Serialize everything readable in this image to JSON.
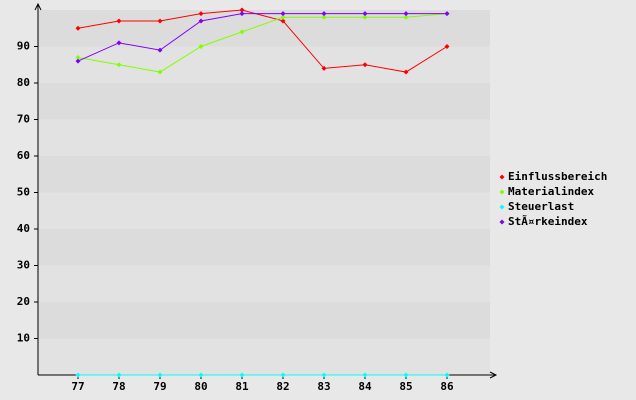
{
  "chart_data": {
    "type": "line",
    "categories": [
      "77",
      "78",
      "79",
      "80",
      "81",
      "82",
      "83",
      "84",
      "85",
      "86"
    ],
    "series": [
      {
        "name": "Einflussbereich",
        "color": "#ff0000",
        "values": [
          95,
          97,
          97,
          99,
          100,
          97,
          84,
          85,
          83,
          90
        ]
      },
      {
        "name": "Materialindex",
        "color": "#80ff00",
        "values": [
          87,
          85,
          83,
          90,
          94,
          98,
          98,
          98,
          98,
          99
        ]
      },
      {
        "name": "Steuerlast",
        "color": "#00ffff",
        "values": [
          0,
          0,
          0,
          0,
          0,
          0,
          0,
          0,
          0,
          0
        ]
      },
      {
        "name": "StÃ¤rkeindex",
        "color": "#8000ff",
        "values": [
          86,
          91,
          89,
          97,
          99,
          99,
          99,
          99,
          99,
          99
        ]
      }
    ],
    "ylim": [
      0,
      100
    ],
    "yticks": [
      10,
      20,
      30,
      40,
      50,
      60,
      70,
      80,
      90
    ],
    "grid": true,
    "legend": "right"
  }
}
